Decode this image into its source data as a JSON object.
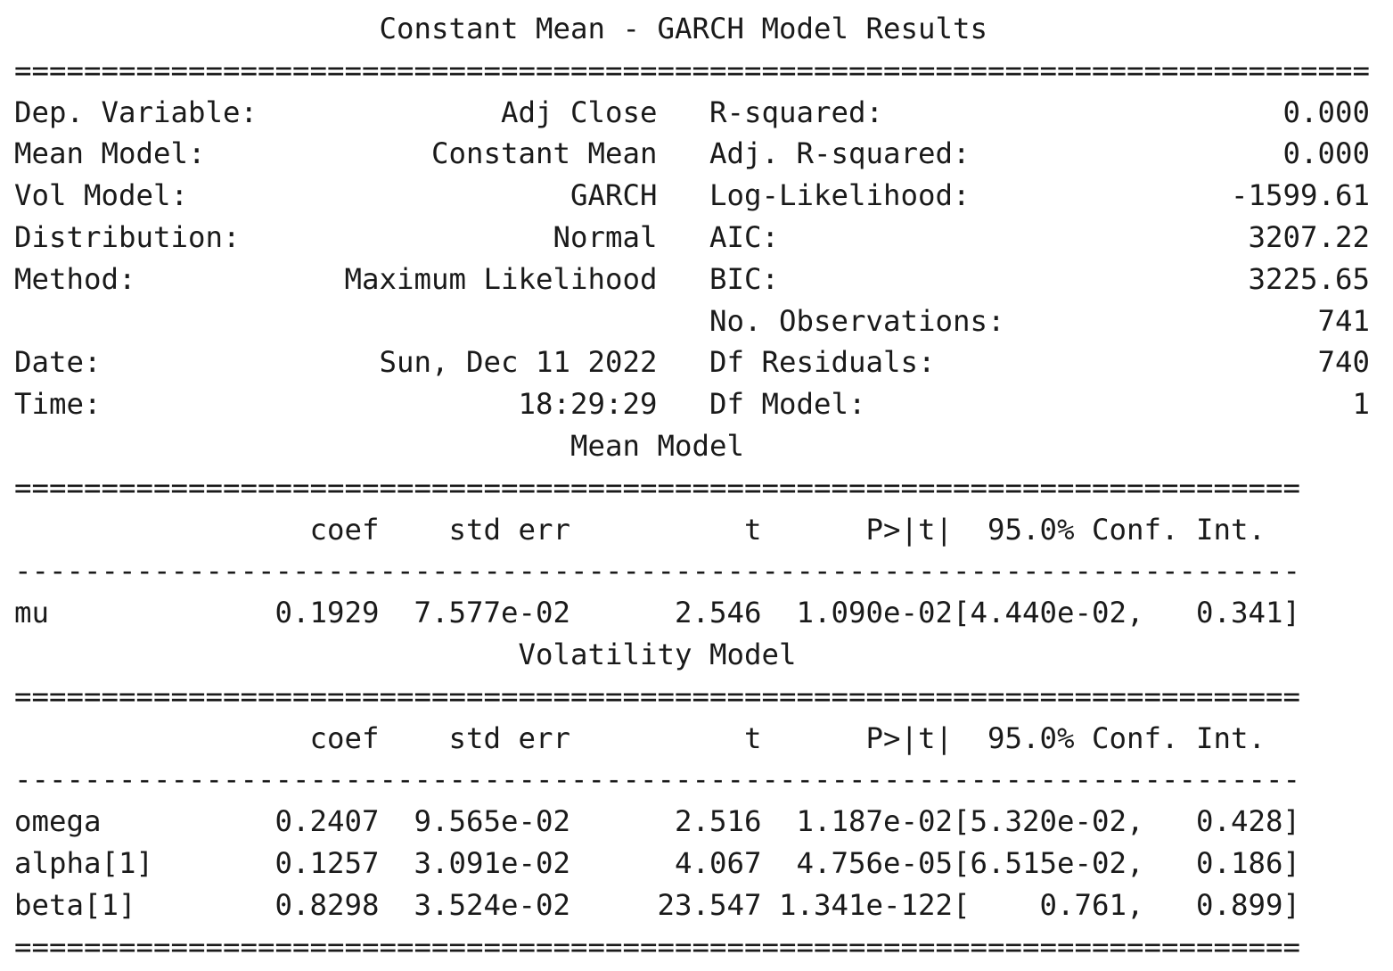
{
  "title": "Constant Mean - GARCH Model Results",
  "summary": {
    "left": [
      {
        "label": "Dep. Variable:",
        "value": "Adj Close"
      },
      {
        "label": "Mean Model:",
        "value": "Constant Mean"
      },
      {
        "label": "Vol Model:",
        "value": "GARCH"
      },
      {
        "label": "Distribution:",
        "value": "Normal"
      },
      {
        "label": "Method:",
        "value": "Maximum Likelihood"
      },
      {
        "label": "",
        "value": ""
      },
      {
        "label": "Date:",
        "value": "Sun, Dec 11 2022"
      },
      {
        "label": "Time:",
        "value": "18:29:29"
      }
    ],
    "right": [
      {
        "label": "R-squared:",
        "value": "0.000"
      },
      {
        "label": "Adj. R-squared:",
        "value": "0.000"
      },
      {
        "label": "Log-Likelihood:",
        "value": "-1599.61"
      },
      {
        "label": "AIC:",
        "value": "3207.22"
      },
      {
        "label": "BIC:",
        "value": "3225.65"
      },
      {
        "label": "No. Observations:",
        "value": "741"
      },
      {
        "label": "Df Residuals:",
        "value": "740"
      },
      {
        "label": "Df Model:",
        "value": "1"
      }
    ]
  },
  "mean_model": {
    "title": "Mean Model",
    "columns": [
      "coef",
      "std err",
      "t",
      "P>|t|",
      "95.0% Conf. Int."
    ],
    "rows": [
      {
        "name": "mu",
        "coef": "0.1929",
        "std_err": "7.577e-02",
        "t": "2.546",
        "p": "1.090e-02",
        "ci_low": "4.440e-02",
        "ci_high": "0.341"
      }
    ]
  },
  "volatility_model": {
    "title": "Volatility Model",
    "columns": [
      "coef",
      "std err",
      "t",
      "P>|t|",
      "95.0% Conf. Int."
    ],
    "rows": [
      {
        "name": "omega",
        "coef": "0.2407",
        "std_err": "9.565e-02",
        "t": "2.516",
        "p": "1.187e-02",
        "ci_low": "5.320e-02",
        "ci_high": "0.428"
      },
      {
        "name": "alpha[1]",
        "coef": "0.1257",
        "std_err": "3.091e-02",
        "t": "4.067",
        "p": "4.756e-05",
        "ci_low": "6.515e-02",
        "ci_high": "0.186"
      },
      {
        "name": "beta[1]",
        "coef": "0.8298",
        "std_err": "3.524e-02",
        "t": "23.547",
        "p": "1.341e-122",
        "ci_low": "0.761",
        "ci_high": "0.899"
      }
    ]
  }
}
